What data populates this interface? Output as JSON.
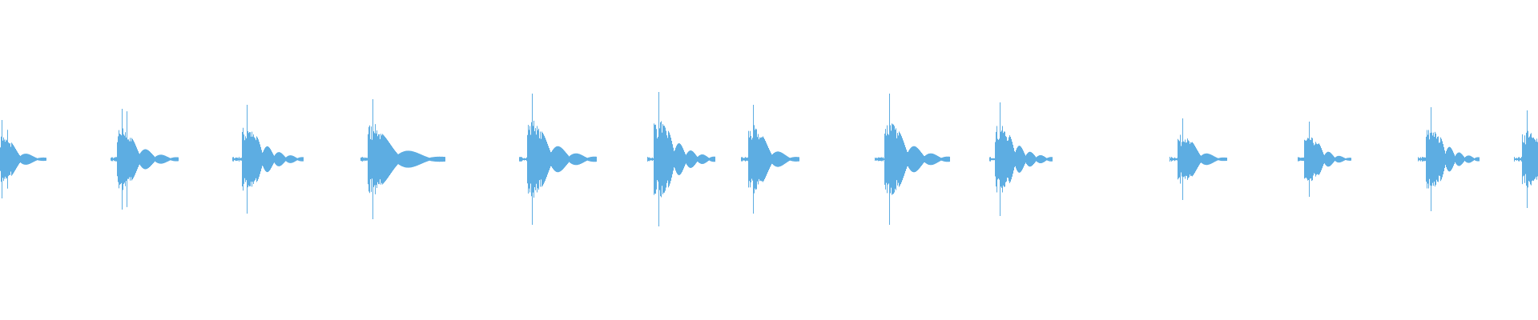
{
  "chart_data": {
    "type": "waveform",
    "color": "#5DADE2",
    "background": "#FFFFFF",
    "axes_visible": false,
    "grid": false,
    "legend": "none",
    "burst_count": 13
  }
}
